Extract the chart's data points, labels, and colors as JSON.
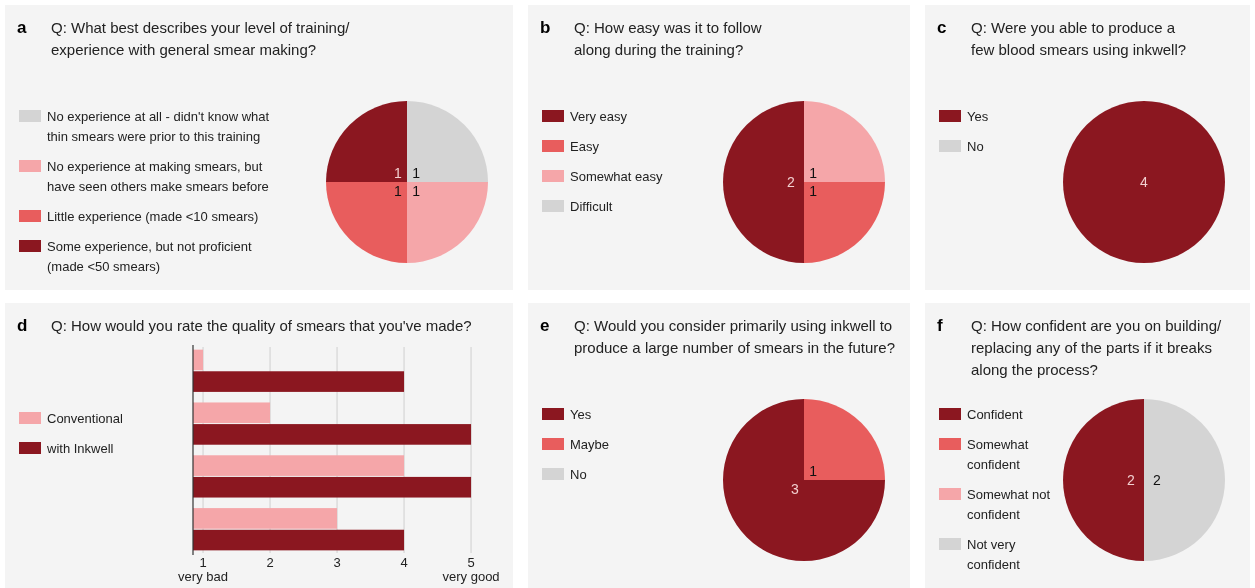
{
  "chart_data": [
    {
      "type": "pie",
      "annotations": [
        "a"
      ],
      "title": "Q: What best describes your level of training/\nexperience with general smear making?",
      "categories": [
        "No experience at all - didn't know what\nthin smears were prior to this training",
        "No experience at making smears, but\nhave seen others make smears before",
        "Little experience (made <10 smears)",
        "Some experience, but not proficient\n(made <50 smears)"
      ],
      "values": [
        1,
        1,
        1,
        1
      ],
      "colors": [
        "#d4d4d4",
        "#f5a6a9",
        "#e85d5d",
        "#8b1720"
      ],
      "data_labels": true,
      "legend": "left"
    },
    {
      "type": "pie",
      "annotations": [
        "b"
      ],
      "title": "Q: How easy was it to follow\nalong during the training?",
      "categories": [
        "Very easy",
        "Easy",
        "Somewhat easy",
        "Difficult"
      ],
      "values": [
        2,
        1,
        1,
        0
      ],
      "colors": [
        "#8b1720",
        "#e85d5d",
        "#f5a6a9",
        "#d4d4d4"
      ],
      "data_labels": true,
      "legend": "left"
    },
    {
      "type": "pie",
      "annotations": [
        "c"
      ],
      "title": "Q: Were you able to produce a\nfew blood smears using inkwell?",
      "categories": [
        "Yes",
        "No"
      ],
      "values": [
        4,
        0
      ],
      "colors": [
        "#8b1720",
        "#d4d4d4"
      ],
      "data_labels": true,
      "legend": "left"
    },
    {
      "type": "bar",
      "orientation": "horizontal",
      "annotations": [
        "d"
      ],
      "title": "Q: How would you rate the quality of smears that you've made?",
      "categories": [
        null,
        null,
        null,
        null
      ],
      "series": [
        {
          "name": "Conventional",
          "color": "#f5a6a9",
          "values": [
            1,
            2,
            4,
            3
          ]
        },
        {
          "name": "with Inkwell",
          "color": "#8b1720",
          "values": [
            4,
            5,
            5,
            4
          ]
        }
      ],
      "xlim": [
        0.85,
        5
      ],
      "xticks": [
        {
          "value": 1,
          "label": "1\nvery bad"
        },
        2,
        3,
        4,
        {
          "value": 5,
          "label": "5\nvery good"
        }
      ],
      "grid": "x",
      "legend": "left"
    },
    {
      "type": "pie",
      "annotations": [
        "e"
      ],
      "title": "Q: Would you consider primarily using inkwell to\nproduce a large number of smears in the future?",
      "categories": [
        "Yes",
        "Maybe",
        "No"
      ],
      "values": [
        3,
        1,
        0
      ],
      "colors": [
        "#8b1720",
        "#e85d5d",
        "#d4d4d4"
      ],
      "data_labels": true,
      "legend": "left"
    },
    {
      "type": "pie",
      "annotations": [
        "f"
      ],
      "title": "Q: How confident are you on building/\nreplacing any of the parts if it breaks\nalong the process?",
      "categories": [
        "Confident",
        "Somewhat\nconfident",
        "Somewhat not\nconfident",
        "Not very\nconfident"
      ],
      "values": [
        2,
        0,
        0,
        2
      ],
      "colors": [
        "#8b1720",
        "#e85d5d",
        "#f5a6a9",
        "#d4d4d4"
      ],
      "data_labels": true,
      "legend": "left"
    }
  ]
}
